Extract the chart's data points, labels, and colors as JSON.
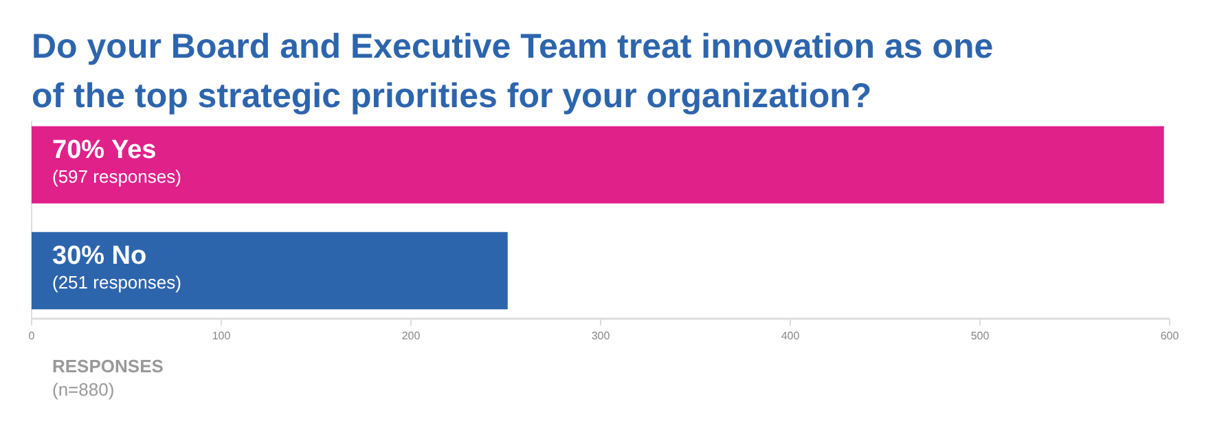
{
  "chart_data": {
    "type": "bar",
    "orientation": "horizontal",
    "title": "Do your Board and Executive Team treat innovation as one\nof the top strategic priorities for your organization?",
    "categories": [
      "70% Yes",
      "30% No"
    ],
    "values": [
      597,
      251
    ],
    "colors": [
      "#e0218a",
      "#2d65ad"
    ],
    "value_labels": [
      "(597 responses)",
      "(251 responses)"
    ],
    "xlim": [
      0,
      600
    ],
    "xticks": [
      0,
      100,
      200,
      300,
      400,
      500,
      600
    ],
    "xlabel": "RESPONSES",
    "annotations": [
      "(n=880)"
    ]
  }
}
